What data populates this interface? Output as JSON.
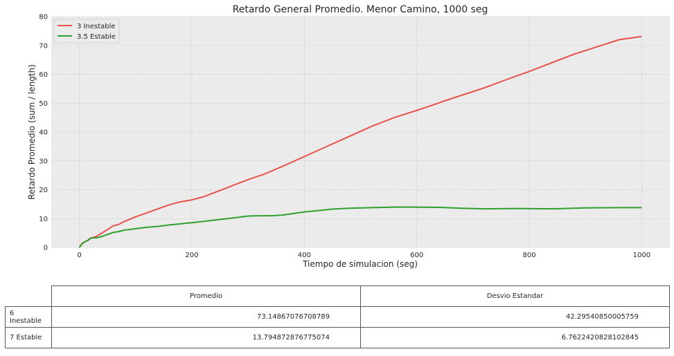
{
  "chart_data": {
    "type": "line",
    "title": "Retardo General Promedio. Menor Camino, 1000 seg",
    "xlabel": "Tiempo de simulacion (seg)",
    "ylabel": "Retardo Promedio (sum / length)",
    "xlim": [
      -50,
      1050
    ],
    "ylim": [
      0,
      80
    ],
    "xticks": [
      0,
      200,
      400,
      600,
      800,
      1000
    ],
    "yticks": [
      0,
      10,
      20,
      30,
      40,
      50,
      60,
      70,
      80
    ],
    "grid": true,
    "legend_position": "top-left",
    "series": [
      {
        "name": "3 Inestable",
        "color": "#e8504a",
        "x": [
          0,
          5,
          10,
          15,
          20,
          25,
          30,
          40,
          50,
          60,
          70,
          80,
          90,
          100,
          120,
          140,
          160,
          180,
          200,
          220,
          240,
          260,
          280,
          300,
          330,
          360,
          400,
          440,
          480,
          520,
          560,
          600,
          620,
          660,
          700,
          720,
          760,
          800,
          840,
          880,
          920,
          960,
          1000
        ],
        "y": [
          0,
          1.5,
          2.0,
          2.5,
          3.3,
          3.5,
          3.8,
          5.0,
          6.2,
          7.5,
          8.0,
          9.0,
          9.8,
          10.6,
          12.0,
          13.4,
          14.8,
          15.8,
          16.5,
          17.5,
          19.0,
          20.5,
          22.0,
          23.5,
          25.5,
          28.0,
          31.5,
          35.0,
          38.5,
          42.0,
          45.0,
          47.5,
          48.8,
          51.5,
          54.0,
          55.3,
          58.2,
          61.0,
          64.0,
          67.0,
          69.5,
          72.0,
          73.1
        ]
      },
      {
        "name": "3.5 Estable",
        "color": "#2ca02c",
        "x": [
          0,
          5,
          10,
          15,
          20,
          25,
          30,
          40,
          50,
          60,
          70,
          80,
          100,
          120,
          140,
          160,
          180,
          200,
          220,
          250,
          280,
          300,
          320,
          340,
          360,
          400,
          420,
          450,
          480,
          520,
          560,
          600,
          640,
          680,
          720,
          780,
          840,
          900,
          960,
          1000
        ],
        "y": [
          0,
          1.3,
          2.0,
          2.4,
          3.2,
          3.4,
          3.3,
          3.8,
          4.5,
          5.2,
          5.5,
          6.0,
          6.5,
          7.0,
          7.3,
          7.8,
          8.2,
          8.6,
          9.0,
          9.7,
          10.4,
          10.9,
          11.0,
          11.0,
          11.2,
          12.3,
          12.7,
          13.3,
          13.6,
          13.8,
          14.0,
          14.0,
          13.9,
          13.6,
          13.4,
          13.5,
          13.4,
          13.7,
          13.8,
          13.8
        ]
      }
    ]
  },
  "table": {
    "columns": [
      "Promedio",
      "Desvio Estandar"
    ],
    "rows": [
      {
        "label": "6 Inestable",
        "values": [
          "73.14867076708789",
          "42.29540850005759"
        ]
      },
      {
        "label": "7 Estable",
        "values": [
          "13.794872876775074",
          "6.7622420828102845"
        ]
      }
    ]
  }
}
